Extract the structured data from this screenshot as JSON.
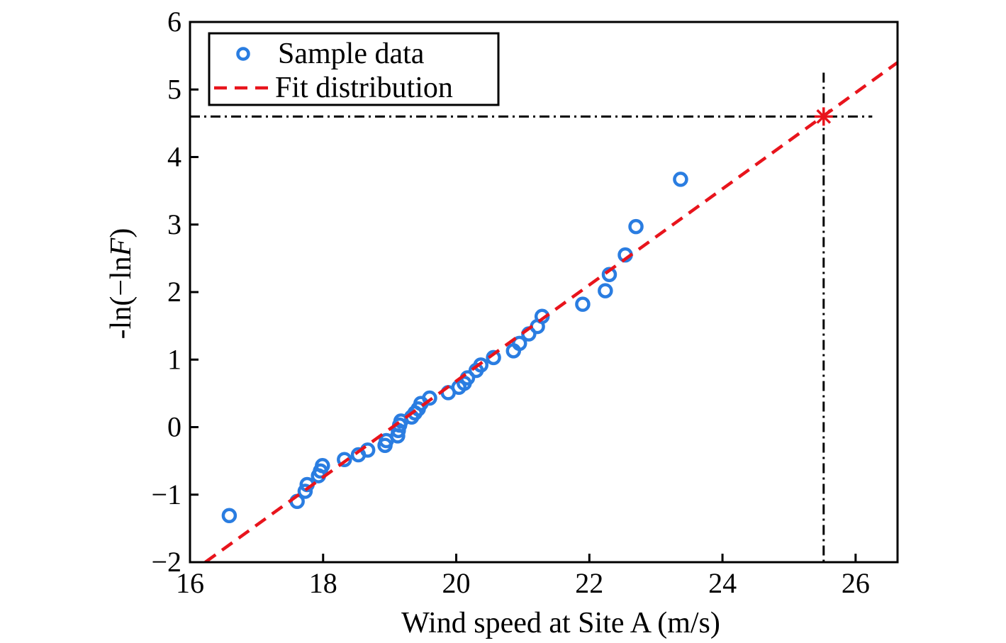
{
  "chart_data": {
    "type": "scatter",
    "title": "",
    "xlabel": "Wind speed at Site A (m/s)",
    "ylabel": "-ln(-lnF)",
    "ylabel_parts": {
      "prefix": "-ln(−ln",
      "italic": "F",
      "suffix": ")"
    },
    "xlim": [
      16,
      26.63
    ],
    "ylim": [
      -2,
      6
    ],
    "xticks": [
      16,
      18,
      20,
      22,
      24,
      26
    ],
    "yticks": [
      -2,
      -1,
      0,
      1,
      2,
      3,
      4,
      5,
      6
    ],
    "ytick_labels": [
      "−2",
      "−1",
      "0",
      "1",
      "2",
      "3",
      "4",
      "5",
      "6"
    ],
    "grid": false,
    "legend": {
      "position": "top-left",
      "entries": [
        "Sample data",
        "Fit distribution"
      ]
    },
    "colors": {
      "sample": "#2a7de1",
      "fit": "#e8141c",
      "guide": "#000000"
    },
    "series": [
      {
        "name": "Sample data",
        "type": "scatter",
        "marker": "circle-open",
        "x": [
          16.59,
          17.61,
          17.73,
          17.76,
          17.93,
          17.96,
          17.99,
          18.32,
          18.53,
          18.67,
          18.93,
          18.95,
          19.12,
          19.13,
          19.15,
          19.17,
          19.33,
          19.38,
          19.43,
          19.47,
          19.6,
          19.88,
          20.04,
          20.12,
          20.17,
          20.3,
          20.37,
          20.56,
          20.86,
          20.95,
          21.09,
          21.22,
          21.29,
          21.9,
          22.24,
          22.3,
          22.54,
          22.7,
          23.37
        ],
        "y": [
          -1.31,
          -1.1,
          -0.95,
          -0.85,
          -0.72,
          -0.65,
          -0.57,
          -0.48,
          -0.41,
          -0.34,
          -0.27,
          -0.2,
          -0.13,
          -0.05,
          0.03,
          0.09,
          0.15,
          0.21,
          0.27,
          0.35,
          0.43,
          0.51,
          0.59,
          0.65,
          0.73,
          0.84,
          0.92,
          1.03,
          1.13,
          1.24,
          1.38,
          1.49,
          1.64,
          1.82,
          2.02,
          2.26,
          2.55,
          2.97,
          3.67
        ]
      },
      {
        "name": "Fit distribution",
        "type": "line",
        "style": "dashed",
        "x": [
          16.23,
          26.63
        ],
        "y": [
          -2.0,
          5.4
        ]
      }
    ],
    "annotations": {
      "design_point": {
        "x": 25.52,
        "y": 4.6,
        "marker": "asterisk"
      },
      "horizontal_guide": {
        "y": 4.6,
        "x_from": 16.0,
        "x_to": 26.25,
        "style": "dash-dot"
      },
      "vertical_guide": {
        "x": 25.52,
        "y_from": -2.0,
        "y_to": 5.25,
        "style": "dash-dot"
      }
    }
  }
}
